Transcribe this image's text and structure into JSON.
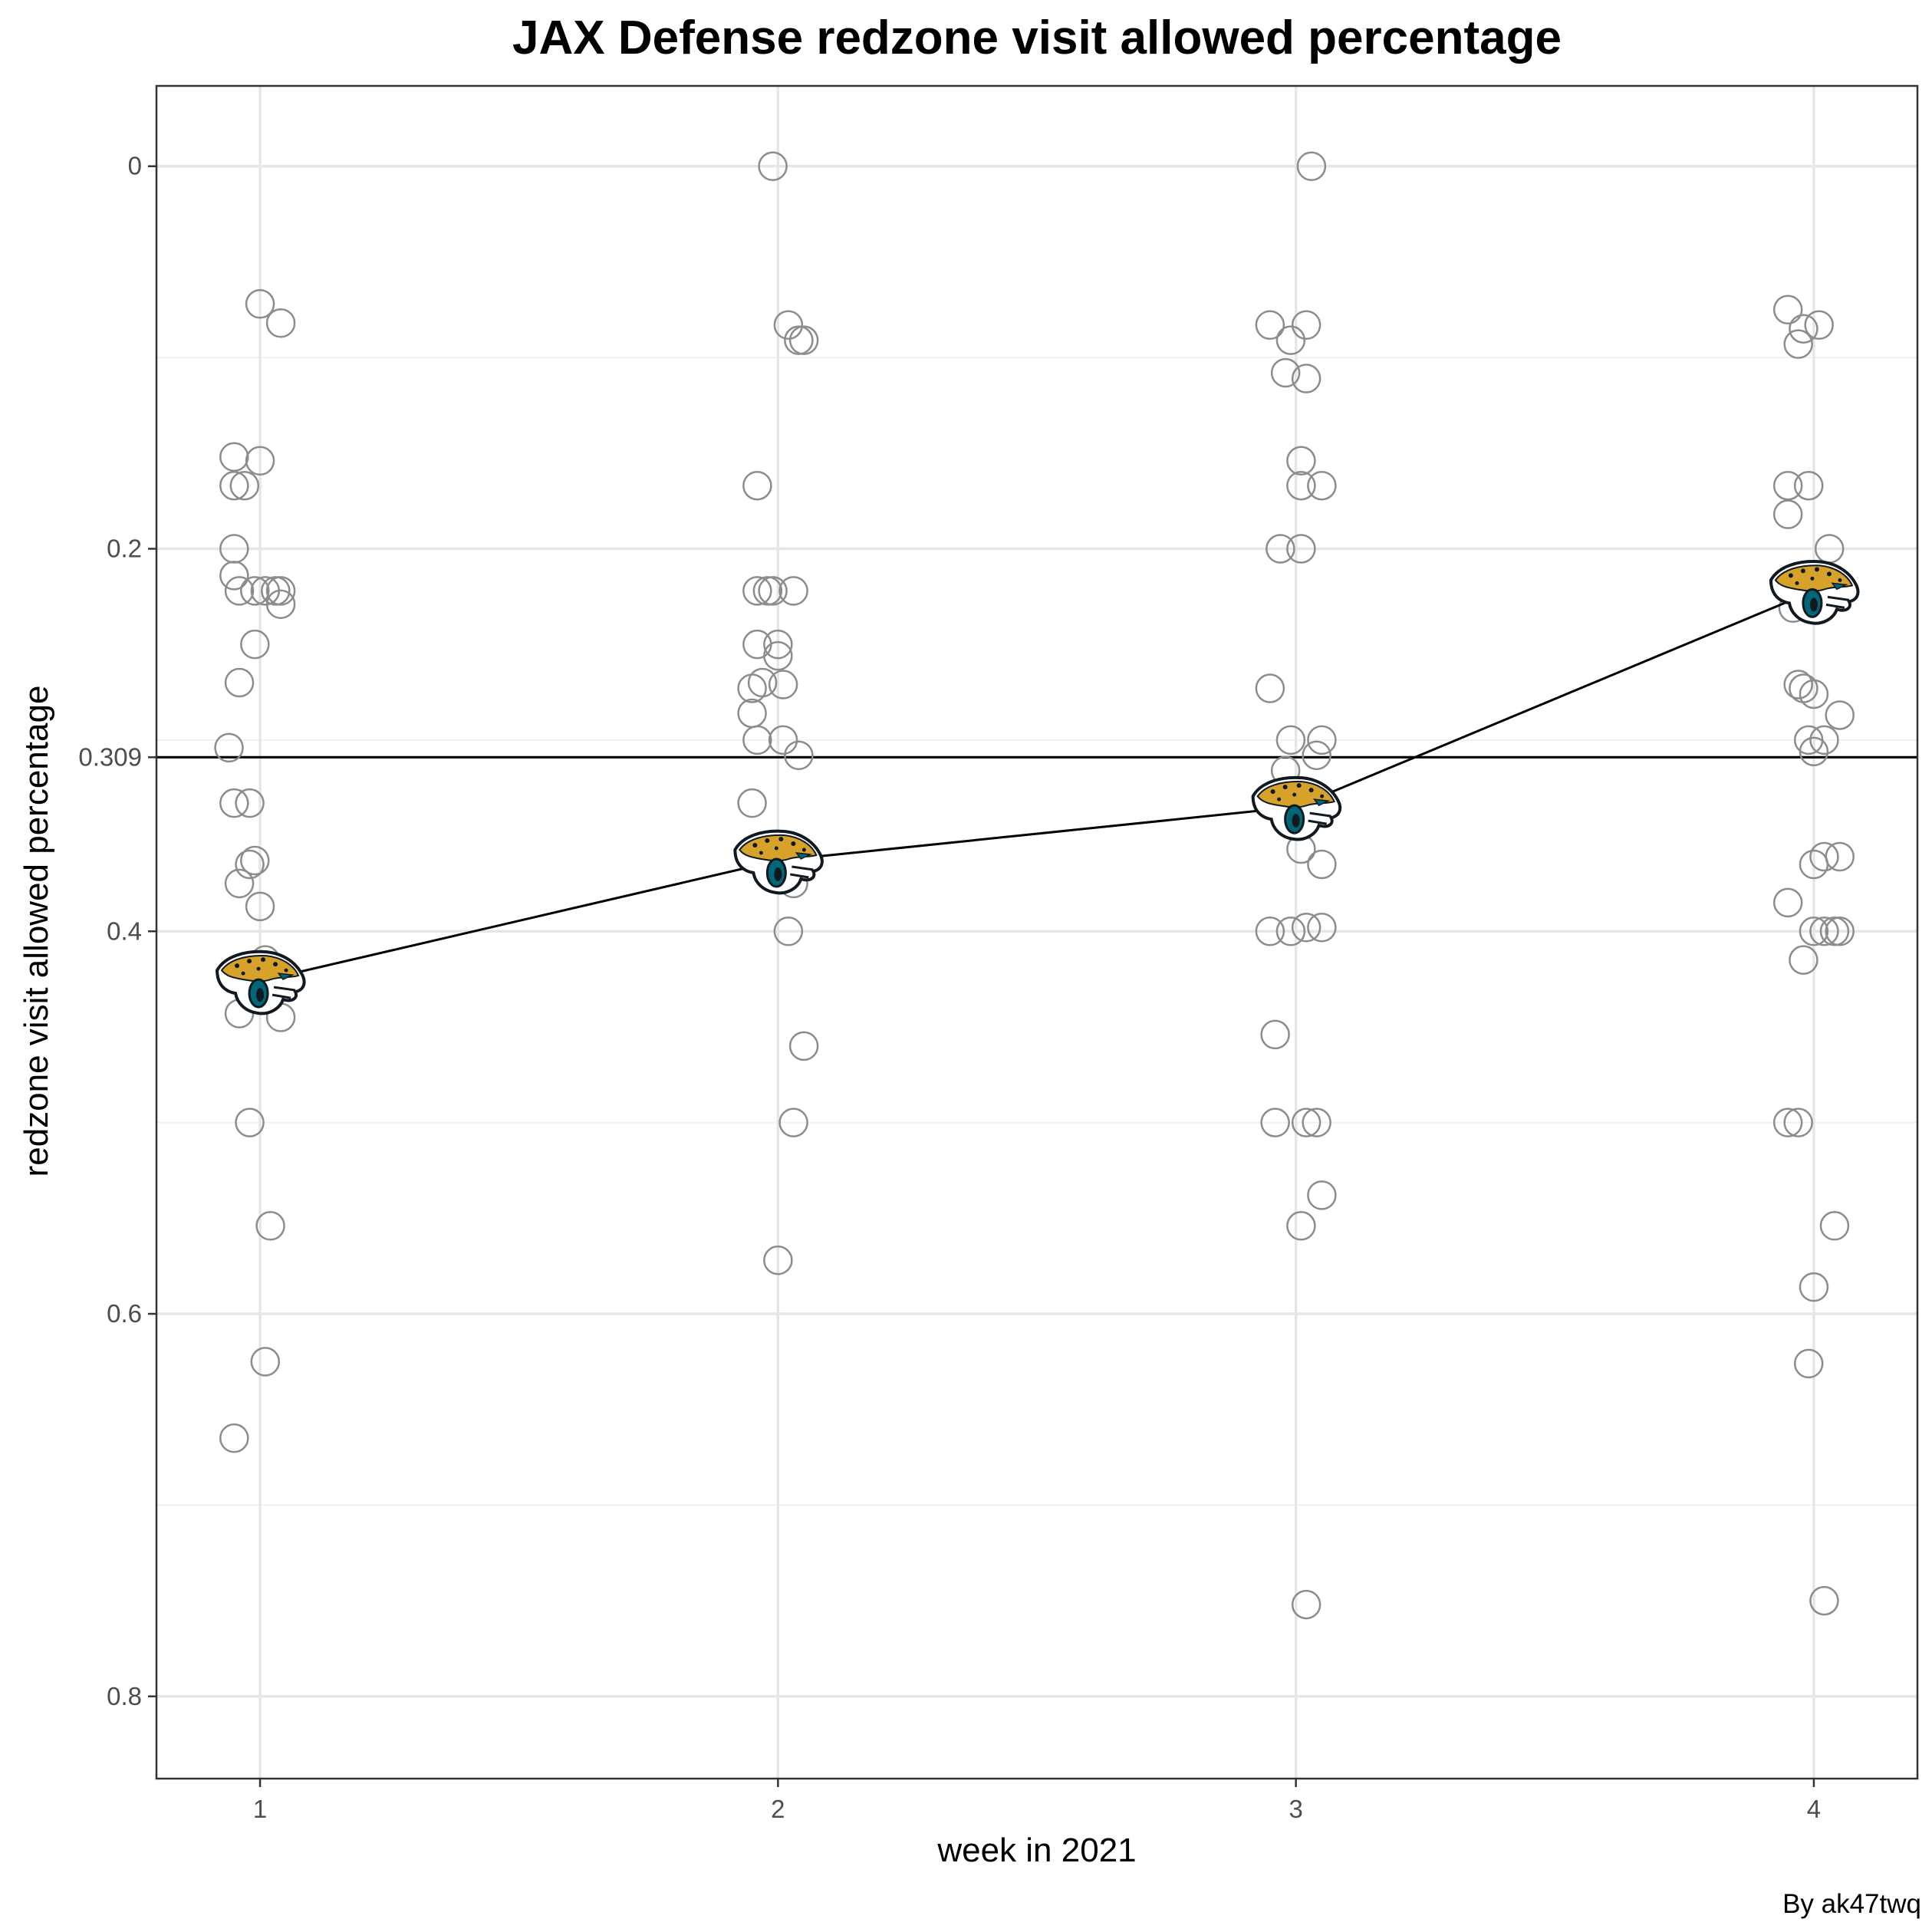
{
  "chart_data": {
    "type": "scatter",
    "title": "JAX Defense redzone visit allowed percentage",
    "xlabel": "week in 2021",
    "ylabel": "redzone visit allowed percentage",
    "caption": "By ak47twq",
    "y_reversed": true,
    "xlim": [
      0.8,
      4.2
    ],
    "ylim": [
      -0.042,
      0.843
    ],
    "x_ticks": [
      1,
      2,
      3,
      4
    ],
    "y_ticks": [
      0,
      0.2,
      0.309,
      0.4,
      0.6,
      0.8
    ],
    "grid": true,
    "reference_line": {
      "y": 0.309,
      "label": "0.309"
    },
    "team_series": {
      "name": "JAX",
      "icon": "jaguar-logo-icon",
      "x": [
        1,
        2,
        3,
        4
      ],
      "y": [
        0.426,
        0.363,
        0.335,
        0.222
      ]
    },
    "league_points": [
      {
        "x": 1.0,
        "y": 0.072
      },
      {
        "x": 1.04,
        "y": 0.082
      },
      {
        "x": 0.95,
        "y": 0.152
      },
      {
        "x": 1.0,
        "y": 0.154
      },
      {
        "x": 0.95,
        "y": 0.167
      },
      {
        "x": 0.97,
        "y": 0.167
      },
      {
        "x": 0.95,
        "y": 0.2
      },
      {
        "x": 0.95,
        "y": 0.214
      },
      {
        "x": 0.96,
        "y": 0.222
      },
      {
        "x": 1.01,
        "y": 0.222
      },
      {
        "x": 1.03,
        "y": 0.222
      },
      {
        "x": 1.04,
        "y": 0.222
      },
      {
        "x": 1.04,
        "y": 0.229
      },
      {
        "x": 0.99,
        "y": 0.222
      },
      {
        "x": 0.99,
        "y": 0.25
      },
      {
        "x": 0.96,
        "y": 0.27
      },
      {
        "x": 0.94,
        "y": 0.304
      },
      {
        "x": 0.95,
        "y": 0.333
      },
      {
        "x": 0.98,
        "y": 0.333
      },
      {
        "x": 0.99,
        "y": 0.363
      },
      {
        "x": 0.98,
        "y": 0.365
      },
      {
        "x": 0.96,
        "y": 0.375
      },
      {
        "x": 1.0,
        "y": 0.387
      },
      {
        "x": 1.01,
        "y": 0.415
      },
      {
        "x": 0.96,
        "y": 0.443
      },
      {
        "x": 1.04,
        "y": 0.445
      },
      {
        "x": 0.98,
        "y": 0.5
      },
      {
        "x": 1.02,
        "y": 0.554
      },
      {
        "x": 1.01,
        "y": 0.625
      },
      {
        "x": 0.95,
        "y": 0.665
      },
      {
        "x": 1.99,
        "y": 0.0
      },
      {
        "x": 2.02,
        "y": 0.083
      },
      {
        "x": 2.05,
        "y": 0.091
      },
      {
        "x": 2.04,
        "y": 0.091
      },
      {
        "x": 1.96,
        "y": 0.167
      },
      {
        "x": 1.96,
        "y": 0.222
      },
      {
        "x": 1.98,
        "y": 0.222
      },
      {
        "x": 1.99,
        "y": 0.222
      },
      {
        "x": 2.03,
        "y": 0.222
      },
      {
        "x": 1.96,
        "y": 0.25
      },
      {
        "x": 2.0,
        "y": 0.25
      },
      {
        "x": 2.0,
        "y": 0.256
      },
      {
        "x": 1.95,
        "y": 0.273
      },
      {
        "x": 1.97,
        "y": 0.27
      },
      {
        "x": 2.01,
        "y": 0.271
      },
      {
        "x": 1.95,
        "y": 0.286
      },
      {
        "x": 1.96,
        "y": 0.3
      },
      {
        "x": 2.01,
        "y": 0.3
      },
      {
        "x": 2.04,
        "y": 0.308
      },
      {
        "x": 1.95,
        "y": 0.333
      },
      {
        "x": 2.03,
        "y": 0.375
      },
      {
        "x": 2.02,
        "y": 0.4
      },
      {
        "x": 2.05,
        "y": 0.46
      },
      {
        "x": 2.03,
        "y": 0.5
      },
      {
        "x": 2.0,
        "y": 0.572
      },
      {
        "x": 3.03,
        "y": 0.0
      },
      {
        "x": 2.95,
        "y": 0.083
      },
      {
        "x": 2.99,
        "y": 0.091
      },
      {
        "x": 3.02,
        "y": 0.083
      },
      {
        "x": 2.98,
        "y": 0.108
      },
      {
        "x": 3.02,
        "y": 0.111
      },
      {
        "x": 3.01,
        "y": 0.154
      },
      {
        "x": 3.01,
        "y": 0.167
      },
      {
        "x": 3.05,
        "y": 0.167
      },
      {
        "x": 2.97,
        "y": 0.2
      },
      {
        "x": 3.01,
        "y": 0.2
      },
      {
        "x": 2.95,
        "y": 0.273
      },
      {
        "x": 2.99,
        "y": 0.3
      },
      {
        "x": 3.05,
        "y": 0.3
      },
      {
        "x": 3.04,
        "y": 0.308
      },
      {
        "x": 2.98,
        "y": 0.316
      },
      {
        "x": 3.01,
        "y": 0.357
      },
      {
        "x": 3.05,
        "y": 0.365
      },
      {
        "x": 2.95,
        "y": 0.4
      },
      {
        "x": 2.99,
        "y": 0.4
      },
      {
        "x": 3.02,
        "y": 0.398
      },
      {
        "x": 3.05,
        "y": 0.398
      },
      {
        "x": 2.96,
        "y": 0.454
      },
      {
        "x": 2.96,
        "y": 0.5
      },
      {
        "x": 3.02,
        "y": 0.5
      },
      {
        "x": 3.04,
        "y": 0.5
      },
      {
        "x": 3.05,
        "y": 0.538
      },
      {
        "x": 3.01,
        "y": 0.554
      },
      {
        "x": 3.02,
        "y": 0.752
      },
      {
        "x": 3.95,
        "y": 0.075
      },
      {
        "x": 3.98,
        "y": 0.085
      },
      {
        "x": 4.01,
        "y": 0.083
      },
      {
        "x": 3.97,
        "y": 0.093
      },
      {
        "x": 3.95,
        "y": 0.167
      },
      {
        "x": 3.99,
        "y": 0.167
      },
      {
        "x": 3.95,
        "y": 0.182
      },
      {
        "x": 4.03,
        "y": 0.2
      },
      {
        "x": 3.98,
        "y": 0.222
      },
      {
        "x": 3.96,
        "y": 0.231
      },
      {
        "x": 3.97,
        "y": 0.271
      },
      {
        "x": 3.98,
        "y": 0.273
      },
      {
        "x": 4.0,
        "y": 0.276
      },
      {
        "x": 4.05,
        "y": 0.287
      },
      {
        "x": 3.99,
        "y": 0.3
      },
      {
        "x": 4.02,
        "y": 0.3
      },
      {
        "x": 4.0,
        "y": 0.306
      },
      {
        "x": 4.0,
        "y": 0.365
      },
      {
        "x": 4.02,
        "y": 0.361
      },
      {
        "x": 4.05,
        "y": 0.361
      },
      {
        "x": 3.95,
        "y": 0.385
      },
      {
        "x": 4.0,
        "y": 0.4
      },
      {
        "x": 4.02,
        "y": 0.4
      },
      {
        "x": 4.04,
        "y": 0.4
      },
      {
        "x": 4.05,
        "y": 0.4
      },
      {
        "x": 3.98,
        "y": 0.415
      },
      {
        "x": 3.95,
        "y": 0.5
      },
      {
        "x": 3.97,
        "y": 0.5
      },
      {
        "x": 4.04,
        "y": 0.554
      },
      {
        "x": 4.0,
        "y": 0.586
      },
      {
        "x": 3.99,
        "y": 0.626
      },
      {
        "x": 4.02,
        "y": 0.75
      }
    ]
  }
}
